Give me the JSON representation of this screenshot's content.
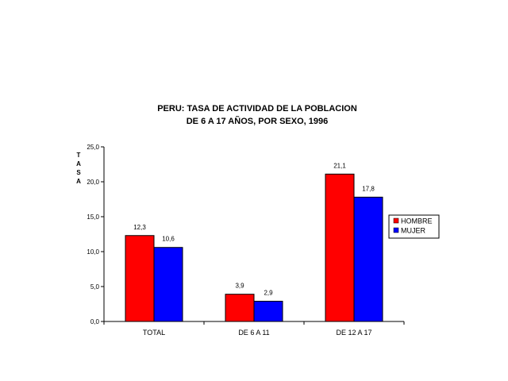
{
  "chart_data": {
    "type": "bar",
    "title": [
      "PERU: TASA DE ACTIVIDAD DE LA POBLACION",
      "DE 6 A 17 AÑOS, POR SEXO, 1996"
    ],
    "ylabel": "TASA",
    "xlabel": "",
    "categories": [
      "TOTAL",
      "DE 6 A 11",
      "DE 12 A 17"
    ],
    "series": [
      {
        "name": "HOMBRE",
        "color": "#ff0000",
        "values": [
          12.3,
          3.9,
          21.1
        ],
        "labels": [
          "12,3",
          "3,9",
          "21,1"
        ]
      },
      {
        "name": "MUJER",
        "color": "#0000ff",
        "values": [
          10.6,
          2.9,
          17.8
        ],
        "labels": [
          "10,6",
          "2,9",
          "17,8"
        ]
      }
    ],
    "ylim": [
      0,
      25
    ],
    "yticks": [
      0,
      5,
      10,
      15,
      20,
      25
    ],
    "ytick_labels": [
      "0,0",
      "5,0",
      "10,0",
      "15,0",
      "20,0",
      "25,0"
    ],
    "grid": false,
    "legend_position": "right"
  }
}
